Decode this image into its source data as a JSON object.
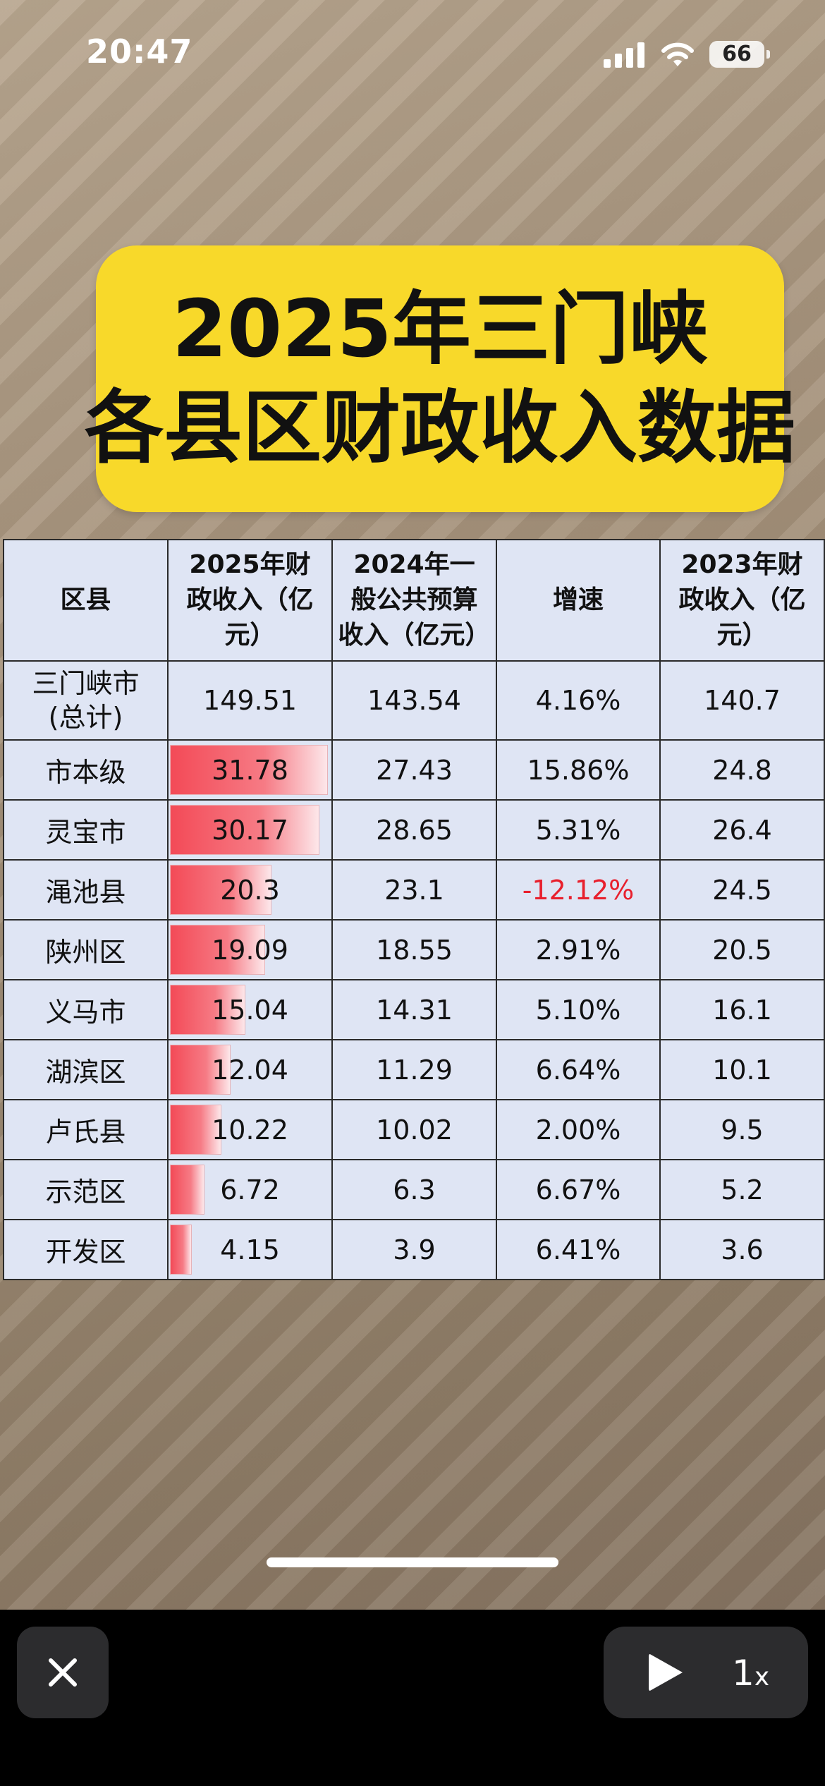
{
  "status_bar": {
    "time": "20:47",
    "battery": "66"
  },
  "title": {
    "line1": "2025年三门峡",
    "line2": "各县区财政收入数据"
  },
  "table": {
    "headers": {
      "name": "区县",
      "rev2025": [
        "2025年财",
        "政收入（亿",
        "元）"
      ],
      "rev2024": [
        "2024年一",
        "般公共预算",
        "收入（亿元）"
      ],
      "growth": "增速",
      "rev2023": [
        "2023年财",
        "政收入（亿",
        "元）"
      ]
    },
    "total": {
      "name": [
        "三门峡市",
        "(总计)"
      ],
      "rev2025": "149.51",
      "rev2024": "143.54",
      "growth": "4.16%",
      "rev2023": "140.7"
    },
    "rows": [
      {
        "name": "市本级",
        "rev2025": "31.78",
        "rev2025_value": 31.78,
        "rev2024": "27.43",
        "growth": "15.86%",
        "rev2023": "24.8"
      },
      {
        "name": "灵宝市",
        "rev2025": "30.17",
        "rev2025_value": 30.17,
        "rev2024": "28.65",
        "growth": "5.31%",
        "rev2023": "26.4"
      },
      {
        "name": "渑池县",
        "rev2025": "20.3",
        "rev2025_value": 20.3,
        "rev2024": "23.1",
        "growth": "-12.12%",
        "rev2023": "24.5"
      },
      {
        "name": "陕州区",
        "rev2025": "19.09",
        "rev2025_value": 19.09,
        "rev2024": "18.55",
        "growth": "2.91%",
        "rev2023": "20.5"
      },
      {
        "name": "义马市",
        "rev2025": "15.04",
        "rev2025_value": 15.04,
        "rev2024": "14.31",
        "growth": "5.10%",
        "rev2023": "16.1"
      },
      {
        "name": "湖滨区",
        "rev2025": "12.04",
        "rev2025_value": 12.04,
        "rev2024": "11.29",
        "growth": "6.64%",
        "rev2023": "10.1"
      },
      {
        "name": "卢氏县",
        "rev2025": "10.22",
        "rev2025_value": 10.22,
        "rev2024": "10.02",
        "growth": "2.00%",
        "rev2023": "9.5"
      },
      {
        "name": "示范区",
        "rev2025": "6.72",
        "rev2025_value": 6.72,
        "rev2024": "6.3",
        "growth": "6.67%",
        "rev2023": "5.2"
      },
      {
        "name": "开发区",
        "rev2025": "4.15",
        "rev2025_value": 4.15,
        "rev2024": "3.9",
        "growth": "6.41%",
        "rev2023": "3.6"
      }
    ],
    "bar_max_value": 31.78,
    "bar_color": "#f34a57",
    "negative_color": "#e8202d"
  },
  "toolbar": {
    "close_icon": "close-icon",
    "play_icon": "play-icon",
    "speed_value": "1",
    "speed_unit": "x"
  }
}
